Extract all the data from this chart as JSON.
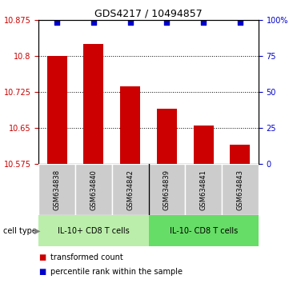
{
  "title": "GDS4217 / 10494857",
  "samples": [
    "GSM634838",
    "GSM634840",
    "GSM634842",
    "GSM634839",
    "GSM634841",
    "GSM634843"
  ],
  "bar_values": [
    10.8,
    10.825,
    10.737,
    10.69,
    10.655,
    10.615
  ],
  "percentile_values": [
    98,
    98,
    98,
    98,
    98,
    98
  ],
  "bar_color": "#cc0000",
  "dot_color": "#0000cc",
  "ymin": 10.575,
  "ymax": 10.875,
  "yticks_left": [
    10.575,
    10.65,
    10.725,
    10.8,
    10.875
  ],
  "ytick_labels_left": [
    "10.575",
    "10.65",
    "10.725",
    "10.8",
    "10.875"
  ],
  "yticks_right": [
    0,
    25,
    50,
    75,
    100
  ],
  "ytick_labels_right": [
    "0",
    "25",
    "50",
    "75",
    "100%"
  ],
  "group1_label": "IL-10+ CD8 T cells",
  "group2_label": "IL-10- CD8 T cells",
  "group1_bg": "#bbeeaa",
  "group2_bg": "#66dd66",
  "cell_type_label": "cell type",
  "legend_bar_label": "transformed count",
  "legend_dot_label": "percentile rank within the sample",
  "tick_color_left": "#cc0000",
  "tick_color_right": "#0000cc",
  "sample_bg_color": "#cccccc",
  "bar_width": 0.55,
  "figsize": [
    3.71,
    3.54
  ],
  "dpi": 100
}
